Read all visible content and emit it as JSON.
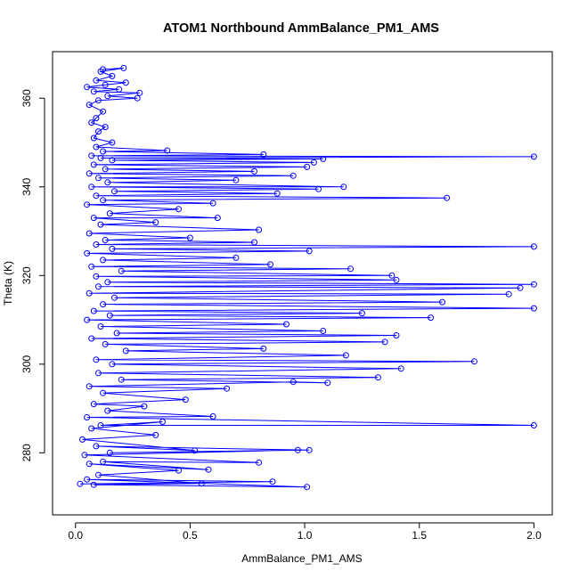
{
  "chart_data": {
    "type": "line",
    "title": "ATOM1 Northbound AmmBalance_PM1_AMS",
    "xlabel": "AmmBalance_PM1_AMS",
    "ylabel": "Theta (K)",
    "xlim": [
      -0.1,
      2.08
    ],
    "ylim": [
      266,
      370.5
    ],
    "xticks": [
      0.0,
      0.5,
      1.0,
      1.5,
      2.0
    ],
    "xtick_labels": [
      "0.0",
      "0.5",
      "1.0",
      "1.5",
      "2.0"
    ],
    "yticks": [
      280,
      300,
      320,
      340,
      360
    ],
    "ytick_labels": [
      "280",
      "300",
      "320",
      "340",
      "360"
    ],
    "grid": false,
    "legend": "none",
    "markers": "open circles joined by lines",
    "color": "#0000ff",
    "series": [
      {
        "points": [
          [
            0.02,
            273.0
          ],
          [
            0.86,
            273.5
          ],
          [
            0.05,
            274.0
          ],
          [
            1.01,
            272.3
          ],
          [
            0.08,
            272.8
          ],
          [
            0.55,
            273.1
          ],
          [
            0.1,
            275.0
          ],
          [
            0.45,
            276.0
          ],
          [
            0.06,
            277.5
          ],
          [
            0.58,
            276.2
          ],
          [
            0.12,
            278.0
          ],
          [
            0.8,
            277.8
          ],
          [
            0.04,
            279.5
          ],
          [
            0.97,
            280.6
          ],
          [
            0.15,
            280.0
          ],
          [
            1.02,
            280.6
          ],
          [
            0.09,
            281.5
          ],
          [
            0.52,
            280.5
          ],
          [
            0.03,
            283.0
          ],
          [
            0.35,
            284.0
          ],
          [
            0.07,
            285.5
          ],
          [
            0.38,
            287.0
          ],
          [
            0.11,
            286.2
          ],
          [
            2.0,
            286.2
          ],
          [
            0.05,
            288.0
          ],
          [
            0.6,
            288.2
          ],
          [
            0.14,
            289.5
          ],
          [
            0.3,
            290.5
          ],
          [
            0.08,
            291.0
          ],
          [
            0.48,
            292.0
          ],
          [
            0.12,
            293.5
          ],
          [
            0.66,
            294.5
          ],
          [
            0.06,
            295.0
          ],
          [
            0.95,
            296.0
          ],
          [
            1.1,
            295.8
          ],
          [
            0.2,
            296.5
          ],
          [
            1.32,
            297.0
          ],
          [
            0.1,
            298.0
          ],
          [
            1.42,
            299.0
          ],
          [
            0.16,
            300.0
          ],
          [
            1.74,
            300.6
          ],
          [
            0.09,
            301.0
          ],
          [
            1.18,
            302.0
          ],
          [
            0.22,
            303.0
          ],
          [
            0.82,
            303.5
          ],
          [
            0.13,
            304.5
          ],
          [
            1.35,
            305.0
          ],
          [
            0.07,
            305.8
          ],
          [
            1.4,
            306.5
          ],
          [
            0.18,
            307.0
          ],
          [
            1.08,
            307.5
          ],
          [
            0.11,
            308.5
          ],
          [
            0.92,
            309.0
          ],
          [
            0.05,
            310.0
          ],
          [
            1.55,
            310.5
          ],
          [
            0.15,
            311.0
          ],
          [
            1.25,
            311.5
          ],
          [
            0.08,
            312.0
          ],
          [
            2.0,
            312.6
          ],
          [
            0.12,
            313.5
          ],
          [
            1.6,
            314.0
          ],
          [
            0.17,
            315.0
          ],
          [
            1.89,
            315.8
          ],
          [
            0.06,
            316.0
          ],
          [
            1.94,
            317.2
          ],
          [
            0.1,
            317.5
          ],
          [
            2.0,
            318.0
          ],
          [
            0.14,
            318.5
          ],
          [
            1.4,
            319.0
          ],
          [
            0.09,
            319.8
          ],
          [
            1.38,
            320.0
          ],
          [
            0.2,
            321.0
          ],
          [
            1.2,
            321.5
          ],
          [
            0.07,
            322.0
          ],
          [
            0.85,
            322.5
          ],
          [
            0.12,
            323.5
          ],
          [
            0.7,
            324.0
          ],
          [
            0.05,
            325.0
          ],
          [
            1.02,
            325.5
          ],
          [
            0.16,
            326.0
          ],
          [
            2.0,
            326.5
          ],
          [
            0.09,
            327.0
          ],
          [
            0.78,
            327.5
          ],
          [
            0.13,
            328.0
          ],
          [
            0.5,
            328.5
          ],
          [
            0.06,
            329.5
          ],
          [
            0.8,
            330.3
          ],
          [
            0.11,
            331.5
          ],
          [
            0.35,
            332.0
          ],
          [
            0.08,
            333.0
          ],
          [
            0.62,
            333.0
          ],
          [
            0.15,
            334.0
          ],
          [
            0.45,
            335.0
          ],
          [
            0.05,
            336.0
          ],
          [
            0.6,
            336.3
          ],
          [
            0.12,
            337.0
          ],
          [
            1.62,
            337.5
          ],
          [
            0.09,
            338.0
          ],
          [
            0.88,
            338.5
          ],
          [
            0.17,
            339.0
          ],
          [
            1.06,
            339.5
          ],
          [
            0.07,
            340.0
          ],
          [
            1.17,
            340.0
          ],
          [
            0.14,
            341.0
          ],
          [
            0.7,
            341.5
          ],
          [
            0.1,
            342.0
          ],
          [
            0.95,
            342.5
          ],
          [
            0.06,
            343.0
          ],
          [
            0.78,
            343.5
          ],
          [
            0.13,
            344.0
          ],
          [
            1.01,
            344.5
          ],
          [
            0.08,
            345.0
          ],
          [
            1.04,
            345.5
          ],
          [
            0.16,
            346.0
          ],
          [
            1.08,
            346.3
          ],
          [
            0.11,
            346.5
          ],
          [
            2.0,
            346.8
          ],
          [
            0.07,
            347.0
          ],
          [
            0.82,
            347.3
          ],
          [
            0.12,
            348.0
          ],
          [
            0.4,
            348.2
          ],
          [
            0.09,
            349.0
          ],
          [
            0.16,
            350.0
          ],
          [
            0.08,
            351.0
          ],
          [
            0.1,
            352.5
          ],
          [
            0.13,
            353.5
          ],
          [
            0.07,
            354.5
          ],
          [
            0.09,
            355.5
          ],
          [
            0.12,
            357.0
          ],
          [
            0.06,
            358.5
          ],
          [
            0.1,
            359.5
          ],
          [
            0.27,
            360.0
          ],
          [
            0.14,
            360.5
          ],
          [
            0.28,
            361.2
          ],
          [
            0.08,
            361.5
          ],
          [
            0.19,
            362.0
          ],
          [
            0.05,
            362.5
          ],
          [
            0.13,
            363.0
          ],
          [
            0.22,
            363.5
          ],
          [
            0.09,
            364.0
          ],
          [
            0.16,
            365.0
          ],
          [
            0.11,
            366.0
          ],
          [
            0.21,
            366.8
          ],
          [
            0.12,
            366.5
          ]
        ]
      }
    ]
  }
}
